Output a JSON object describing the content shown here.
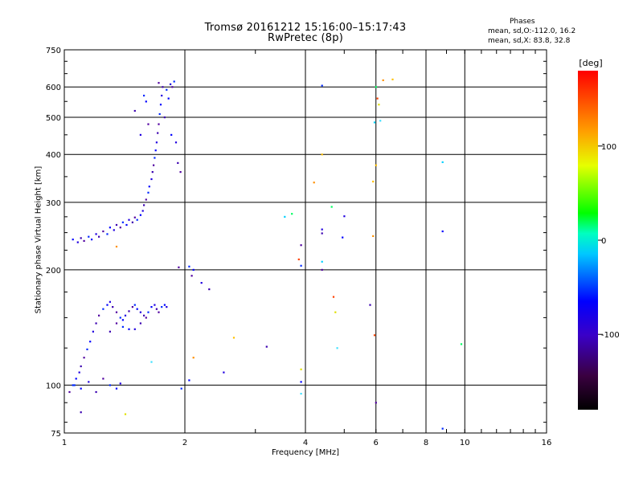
{
  "chart_data": {
    "type": "scatter",
    "title": "Tromsø 20161212 15:16:00–15:17:43",
    "subtitle": "RwPretec (8p)",
    "xlabel": "Frequency [MHz]",
    "ylabel": "Stationary phase Virtual Height [km]",
    "xscale": "log",
    "yscale": "log",
    "xlim": [
      1,
      16
    ],
    "ylim": [
      75,
      750
    ],
    "xticks": [
      1,
      2,
      4,
      6,
      8,
      10,
      16
    ],
    "xtick_labels": [
      "1",
      "2",
      "4",
      "6",
      "8",
      "10",
      "16"
    ],
    "yticks": [
      75,
      100,
      200,
      300,
      400,
      500,
      600,
      750
    ],
    "ytick_labels": [
      "75",
      "100",
      "200",
      "300",
      "400",
      "500",
      "600",
      "750"
    ],
    "grid": true,
    "colorbar": {
      "label": "[deg]",
      "range": [
        -180,
        180
      ],
      "ticks": [
        100,
        0,
        -100
      ],
      "tick_labels": [
        "100",
        "0",
        "-100"
      ]
    },
    "phase_stats": {
      "title": "Phases",
      "line1": "mean, sd,O:-112.0, 16.2",
      "line2": "mean, sd,X:  83.8, 32.8"
    },
    "series": [
      {
        "name": "O",
        "points": [
          [
            1.05,
            240
          ],
          [
            1.08,
            236
          ],
          [
            1.1,
            242
          ],
          [
            1.12,
            238
          ],
          [
            1.15,
            244
          ],
          [
            1.17,
            240
          ],
          [
            1.2,
            248
          ],
          [
            1.22,
            244
          ],
          [
            1.25,
            252
          ],
          [
            1.28,
            248
          ],
          [
            1.3,
            258
          ],
          [
            1.33,
            254
          ],
          [
            1.35,
            262
          ],
          [
            1.38,
            258
          ],
          [
            1.4,
            266
          ],
          [
            1.43,
            262
          ],
          [
            1.45,
            270
          ],
          [
            1.48,
            266
          ],
          [
            1.5,
            274
          ],
          [
            1.52,
            270
          ],
          [
            1.55,
            278
          ],
          [
            1.57,
            285
          ],
          [
            1.58,
            295
          ],
          [
            1.6,
            305
          ],
          [
            1.62,
            318
          ],
          [
            1.63,
            330
          ],
          [
            1.65,
            345
          ],
          [
            1.66,
            360
          ],
          [
            1.67,
            375
          ],
          [
            1.68,
            392
          ],
          [
            1.69,
            410
          ],
          [
            1.7,
            430
          ],
          [
            1.71,
            455
          ],
          [
            1.72,
            480
          ],
          [
            1.73,
            510
          ],
          [
            1.74,
            540
          ],
          [
            1.75,
            570
          ],
          [
            1.76,
            600
          ],
          [
            1.72,
            615
          ],
          [
            1.8,
            590
          ],
          [
            1.82,
            560
          ],
          [
            1.84,
            610
          ],
          [
            1.78,
            500
          ],
          [
            1.86,
            600
          ],
          [
            1.88,
            620
          ],
          [
            1.85,
            450
          ],
          [
            1.9,
            430
          ],
          [
            1.92,
            380
          ],
          [
            1.95,
            360
          ],
          [
            1.58,
            570
          ],
          [
            1.6,
            550
          ],
          [
            1.55,
            450
          ],
          [
            1.5,
            520
          ],
          [
            1.62,
            480
          ],
          [
            1.05,
            100
          ],
          [
            1.07,
            104
          ],
          [
            1.09,
            108
          ],
          [
            1.1,
            112
          ],
          [
            1.12,
            118
          ],
          [
            1.14,
            124
          ],
          [
            1.16,
            130
          ],
          [
            1.18,
            138
          ],
          [
            1.2,
            145
          ],
          [
            1.22,
            152
          ],
          [
            1.25,
            158
          ],
          [
            1.28,
            162
          ],
          [
            1.3,
            165
          ],
          [
            1.32,
            160
          ],
          [
            1.35,
            155
          ],
          [
            1.38,
            150
          ],
          [
            1.4,
            148
          ],
          [
            1.42,
            152
          ],
          [
            1.45,
            156
          ],
          [
            1.48,
            160
          ],
          [
            1.5,
            162
          ],
          [
            1.52,
            158
          ],
          [
            1.55,
            155
          ],
          [
            1.58,
            152
          ],
          [
            1.6,
            150
          ],
          [
            1.62,
            155
          ],
          [
            1.65,
            160
          ],
          [
            1.68,
            162
          ],
          [
            1.7,
            158
          ],
          [
            1.72,
            155
          ],
          [
            1.75,
            160
          ],
          [
            1.78,
            162
          ],
          [
            1.8,
            160
          ],
          [
            1.3,
            138
          ],
          [
            1.35,
            145
          ],
          [
            1.4,
            142
          ],
          [
            1.45,
            140
          ],
          [
            1.5,
            140
          ],
          [
            1.55,
            145
          ],
          [
            1.03,
            96
          ],
          [
            1.06,
            100
          ],
          [
            1.1,
            98
          ],
          [
            1.15,
            102
          ],
          [
            1.2,
            96
          ],
          [
            1.25,
            104
          ],
          [
            1.3,
            100
          ],
          [
            1.35,
            98
          ],
          [
            1.38,
            101
          ],
          [
            1.1,
            85
          ],
          [
            1.93,
            203
          ],
          [
            2.05,
            204
          ],
          [
            2.1,
            200
          ],
          [
            2.2,
            185
          ],
          [
            2.3,
            178
          ],
          [
            2.08,
            193
          ],
          [
            1.96,
            98
          ],
          [
            2.05,
            103
          ],
          [
            2.5,
            108
          ],
          [
            3.2,
            126
          ],
          [
            3.9,
            232
          ],
          [
            3.9,
            205
          ],
          [
            3.9,
            102
          ],
          [
            4.4,
            255
          ],
          [
            4.4,
            249
          ],
          [
            4.4,
            200
          ],
          [
            4.4,
            605
          ],
          [
            4.95,
            243
          ],
          [
            5.0,
            276
          ],
          [
            5.8,
            162
          ],
          [
            6.0,
            90
          ],
          [
            8.8,
            77
          ],
          [
            8.8,
            252
          ]
        ]
      },
      {
        "name": "X",
        "points": [
          [
            1.35,
            230
          ],
          [
            2.65,
            133
          ],
          [
            3.55,
            275
          ],
          [
            3.7,
            280
          ],
          [
            3.85,
            213
          ],
          [
            3.9,
            110
          ],
          [
            3.9,
            95
          ],
          [
            4.2,
            338
          ],
          [
            4.4,
            400
          ],
          [
            4.4,
            210
          ],
          [
            4.65,
            292
          ],
          [
            4.7,
            170
          ],
          [
            4.75,
            155
          ],
          [
            4.8,
            125
          ],
          [
            5.9,
            245
          ],
          [
            5.9,
            340
          ],
          [
            5.95,
            485
          ],
          [
            6.0,
            600
          ],
          [
            6.05,
            560
          ],
          [
            6.1,
            540
          ],
          [
            6.15,
            490
          ],
          [
            6.25,
            625
          ],
          [
            6.6,
            628
          ],
          [
            8.8,
            382
          ],
          [
            9.8,
            128
          ],
          [
            5.95,
            135
          ],
          [
            1.42,
            84
          ],
          [
            1.65,
            115
          ],
          [
            2.1,
            118
          ],
          [
            6.0,
            375
          ]
        ]
      }
    ]
  }
}
